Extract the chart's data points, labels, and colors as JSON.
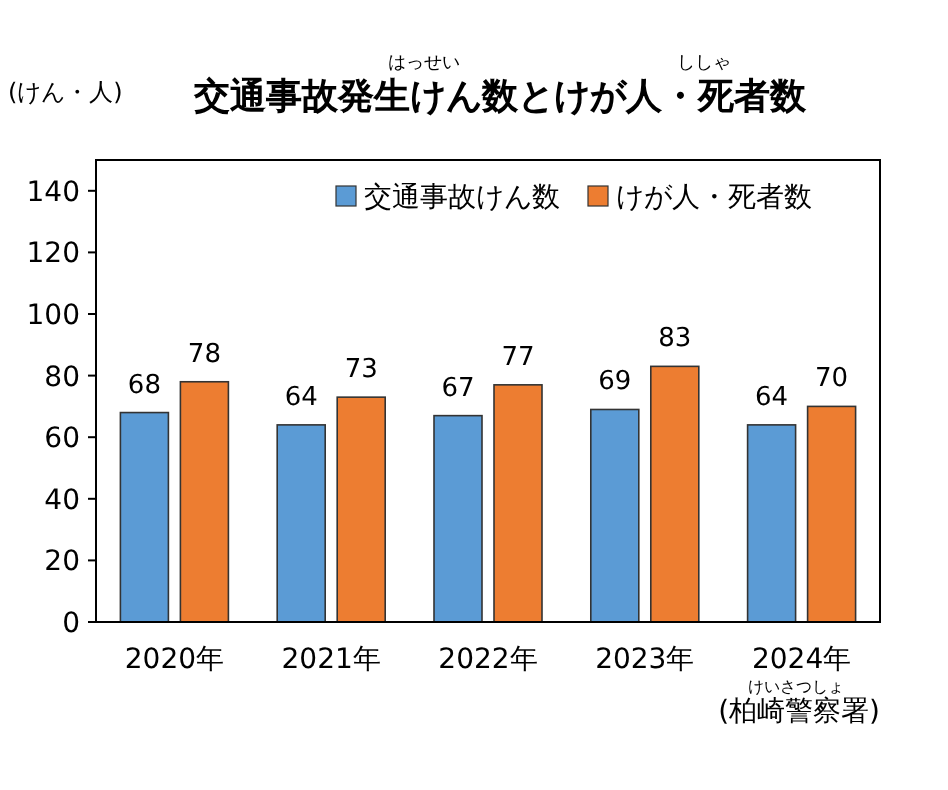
{
  "chart_data": {
    "type": "bar",
    "title": "交通事故発生けん数とけが人・死者数",
    "ylabel": "(けん・人)",
    "categories": [
      "2020年",
      "2021年",
      "2022年",
      "2023年",
      "2024年"
    ],
    "series": [
      {
        "name": "交通事故けん数",
        "color": "#5b9bd5",
        "values": [
          68,
          64,
          67,
          69,
          64
        ]
      },
      {
        "name": "けが人・死者数",
        "color": "#ed7d31",
        "values": [
          78,
          73,
          77,
          83,
          70
        ]
      }
    ],
    "ylim": [
      0,
      150
    ],
    "yticks": [
      0,
      20,
      40,
      60,
      80,
      100,
      120,
      140
    ],
    "grid": false,
    "legend": "top right",
    "data_labels": true,
    "annotations": [
      "はっせい",
      "ししゃ",
      "(柏崎警察署)",
      "けいさつしょ"
    ]
  }
}
